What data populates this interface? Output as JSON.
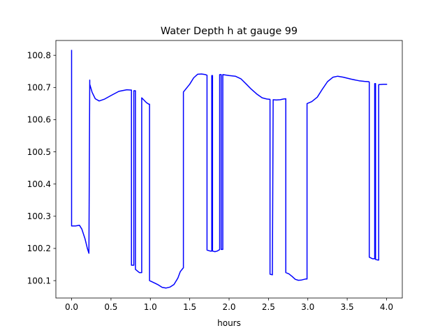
{
  "chart_data": {
    "type": "line",
    "title": "Water Depth h at gauge 99",
    "xlabel": "hours",
    "ylabel": "",
    "xlim": [
      -0.2,
      4.2
    ],
    "ylim": [
      100.046,
      100.846
    ],
    "xticks": [
      0.0,
      0.5,
      1.0,
      1.5,
      2.0,
      2.5,
      3.0,
      3.5,
      4.0
    ],
    "xtick_labels": [
      "0.0",
      "0.5",
      "1.0",
      "1.5",
      "2.0",
      "2.5",
      "3.0",
      "3.5",
      "4.0"
    ],
    "yticks": [
      100.1,
      100.2,
      100.3,
      100.4,
      100.5,
      100.6,
      100.7,
      100.8
    ],
    "ytick_labels": [
      "100.1",
      "100.2",
      "100.3",
      "100.4",
      "100.5",
      "100.6",
      "100.7",
      "100.8"
    ],
    "grid": false,
    "series": [
      {
        "color": "#0000ff",
        "x": [
          0.0,
          0.0,
          0.05,
          0.1,
          0.13,
          0.17,
          0.2,
          0.22,
          0.23,
          0.23,
          0.26,
          0.3,
          0.35,
          0.42,
          0.5,
          0.6,
          0.7,
          0.75,
          0.76,
          0.76,
          0.78,
          0.79,
          0.79,
          0.8,
          0.81,
          0.81,
          0.86,
          0.89,
          0.89,
          0.95,
          0.98,
          0.99,
          0.99,
          1.05,
          1.1,
          1.15,
          1.2,
          1.25,
          1.3,
          1.35,
          1.38,
          1.42,
          1.42,
          1.5,
          1.55,
          1.6,
          1.65,
          1.7,
          1.72,
          1.72,
          1.76,
          1.78,
          1.78,
          1.79,
          1.79,
          1.82,
          1.85,
          1.87,
          1.88,
          1.88,
          1.89,
          1.9,
          1.9,
          1.91,
          1.92,
          1.92,
          2.0,
          2.08,
          2.15,
          2.22,
          2.28,
          2.35,
          2.42,
          2.48,
          2.52,
          2.52,
          2.55,
          2.55,
          2.56,
          2.56,
          2.6,
          2.65,
          2.69,
          2.72,
          2.72,
          2.76,
          2.8,
          2.84,
          2.88,
          2.92,
          2.97,
          2.99,
          2.99,
          3.05,
          3.12,
          3.18,
          3.25,
          3.32,
          3.38,
          3.45,
          3.55,
          3.65,
          3.72,
          3.77,
          3.78,
          3.78,
          3.82,
          3.85,
          3.85,
          3.86,
          3.86,
          3.89,
          3.9,
          3.9,
          3.96,
          4.0
        ],
        "y": [
          100.815,
          100.27,
          100.27,
          100.272,
          100.26,
          100.23,
          100.2,
          100.185,
          100.723,
          100.71,
          100.685,
          100.665,
          100.658,
          100.664,
          100.675,
          100.688,
          100.693,
          100.692,
          100.692,
          100.148,
          100.148,
          100.148,
          100.69,
          100.69,
          100.69,
          100.135,
          100.125,
          100.125,
          100.668,
          100.653,
          100.648,
          100.648,
          100.1,
          100.093,
          100.087,
          100.079,
          100.077,
          100.08,
          100.088,
          100.108,
          100.128,
          100.14,
          100.686,
          100.71,
          100.73,
          100.741,
          100.742,
          100.74,
          100.738,
          100.195,
          100.192,
          100.192,
          100.737,
          100.737,
          100.192,
          100.19,
          100.192,
          100.195,
          100.196,
          100.74,
          100.74,
          100.74,
          100.197,
          100.197,
          100.197,
          100.74,
          100.737,
          100.735,
          100.727,
          100.71,
          100.695,
          100.68,
          100.668,
          100.664,
          100.663,
          100.12,
          100.118,
          100.118,
          100.662,
          100.662,
          100.661,
          100.662,
          100.664,
          100.665,
          100.125,
          100.121,
          100.113,
          100.104,
          100.101,
          100.102,
          100.105,
          100.105,
          100.65,
          100.656,
          100.67,
          100.693,
          100.718,
          100.732,
          100.735,
          100.732,
          100.726,
          100.721,
          100.719,
          100.718,
          100.717,
          100.173,
          100.168,
          100.168,
          100.712,
          100.712,
          100.166,
          100.164,
          100.164,
          100.709,
          100.71,
          100.71
        ]
      }
    ]
  }
}
